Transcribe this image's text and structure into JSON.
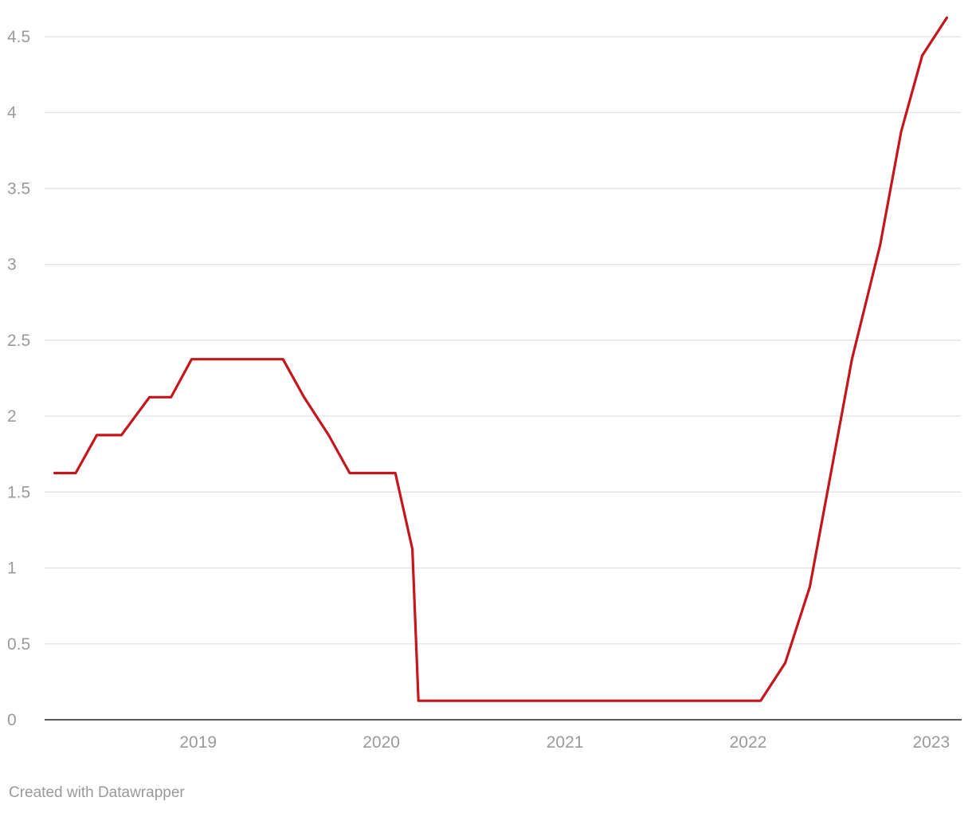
{
  "chart_data": {
    "type": "line",
    "title": "",
    "xlabel": "",
    "ylabel": "",
    "x_ticks": [
      "2019",
      "2020",
      "2021",
      "2022",
      "2023"
    ],
    "y_ticks": [
      "0",
      "0.5",
      "1",
      "1.5",
      "2",
      "2.5",
      "3",
      "3.5",
      "4",
      "4.5"
    ],
    "ylim": [
      0,
      4.5
    ],
    "xlim": [
      "2018-03-01",
      "2023-03-01"
    ],
    "grid": true,
    "legend": "none",
    "line_color": "#c4161c",
    "series": [
      {
        "points": [
          [
            "2018-03-21",
            1.625
          ],
          [
            "2018-05-02",
            1.625
          ],
          [
            "2018-06-13",
            1.875
          ],
          [
            "2018-08-01",
            1.875
          ],
          [
            "2018-09-26",
            2.125
          ],
          [
            "2018-11-08",
            2.125
          ],
          [
            "2018-12-19",
            2.375
          ],
          [
            "2019-06-19",
            2.375
          ],
          [
            "2019-07-31",
            2.125
          ],
          [
            "2019-09-18",
            1.875
          ],
          [
            "2019-10-30",
            1.625
          ],
          [
            "2020-01-29",
            1.625
          ],
          [
            "2020-03-03",
            1.125
          ],
          [
            "2020-03-15",
            0.125
          ],
          [
            "2022-01-26",
            0.125
          ],
          [
            "2022-03-16",
            0.375
          ],
          [
            "2022-05-04",
            0.875
          ],
          [
            "2022-06-15",
            1.625
          ],
          [
            "2022-07-27",
            2.375
          ],
          [
            "2022-09-21",
            3.125
          ],
          [
            "2022-11-02",
            3.875
          ],
          [
            "2022-12-14",
            4.375
          ],
          [
            "2023-02-01",
            4.625
          ]
        ]
      }
    ]
  },
  "footer": {
    "credit": "Created with Datawrapper"
  }
}
